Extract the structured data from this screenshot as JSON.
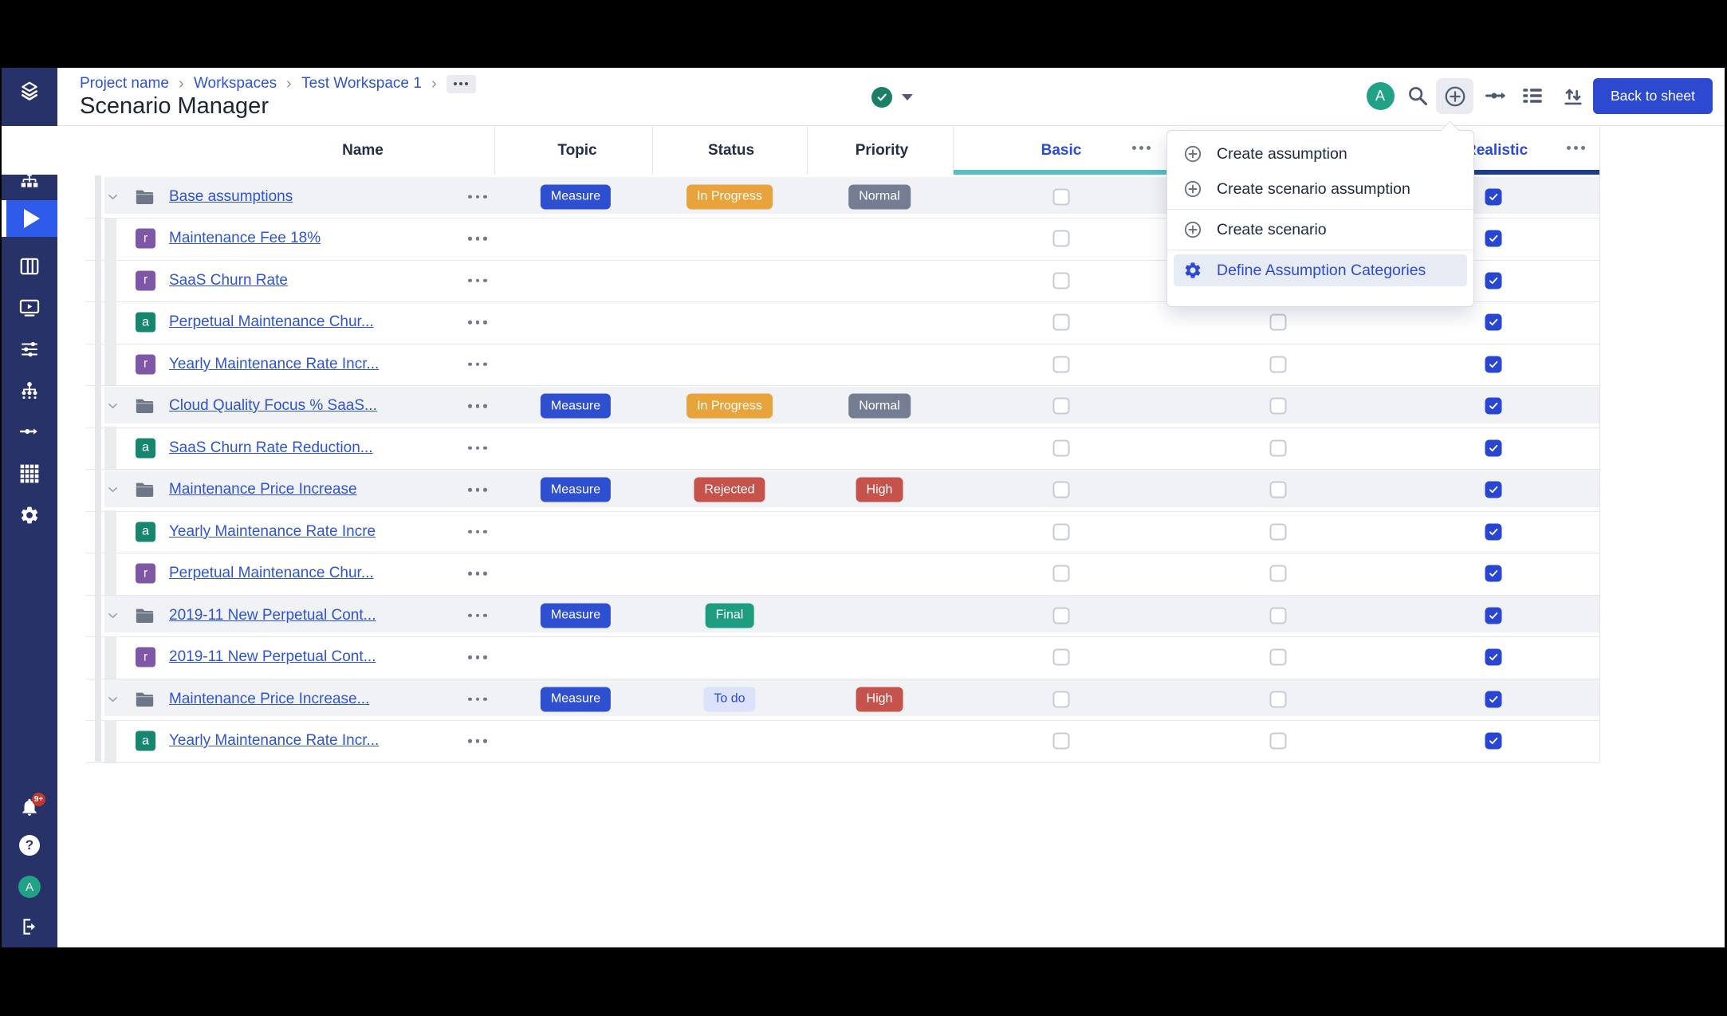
{
  "colors": {
    "accent_blue": "#2b4bd7",
    "link_blue": "#2e54d3",
    "sidebar_bg": "#273268",
    "sidebar_active": "#2e5be9",
    "teal_underline": "#54bfc5",
    "navy_underline": "#1e3d92",
    "badge_blue": "#2e4fd0",
    "badge_orange": "#e8a33b",
    "badge_gray": "#747d92",
    "badge_red": "#c5534c",
    "badge_green": "#1e9c80",
    "badge_light_bg": "#dbe2f9",
    "checkbox_blue": "#2946d2",
    "back_button_bg": "#2d49cf",
    "status_green": "#1b7f68",
    "avatar_green": "#21a185",
    "letter_r_bg": "#7e57a7",
    "letter_a_bg": "#17866f"
  },
  "sidebar": {
    "top_icons": [
      "layers-logo",
      "archive",
      "sitemap",
      "play",
      "columns",
      "screen-play",
      "sliders",
      "org-chart",
      "flow-arrow",
      "grid",
      "gear"
    ],
    "active_icon": "play",
    "bottom_icons": [
      "bell",
      "help",
      "avatar",
      "logout"
    ],
    "notifications_badge": "9+",
    "avatar_initial": "A"
  },
  "breadcrumb": {
    "items": [
      "Project name",
      "Workspaces",
      "Test Workspace 1"
    ],
    "more": "..."
  },
  "page_title": "Scenario Manager",
  "topbar": {
    "status_icon": "check",
    "avatar_initial": "A",
    "back_button": "Back to sheet"
  },
  "menu": {
    "items": [
      {
        "icon": "plus-circle",
        "label": "Create assumption",
        "highlighted": false,
        "divider_after": false
      },
      {
        "icon": "plus-circle",
        "label": "Create scenario assumption",
        "highlighted": false,
        "divider_after": true
      },
      {
        "icon": "plus-circle",
        "label": "Create scenario",
        "highlighted": false,
        "divider_after": true
      },
      {
        "icon": "gear",
        "label": "Define Assumption Categories",
        "highlighted": true,
        "divider_after": false
      }
    ]
  },
  "table": {
    "headers": [
      "Name",
      "Topic",
      "Status",
      "Priority",
      "Basic",
      "Realistic"
    ],
    "basic_header_color": "blue",
    "realistic_header_color": "blue",
    "scenario_columns": [
      {
        "name": "Basic",
        "checked": false
      },
      {
        "name": "hidden",
        "checked": false
      },
      {
        "name": "Realistic",
        "checked": true
      }
    ],
    "rows": [
      {
        "type": "group",
        "icon": "folder",
        "name": "Base assumptions",
        "topic": {
          "label": "Measure",
          "variant": "blue"
        },
        "status": {
          "label": "In Progress",
          "variant": "orange"
        },
        "priority": {
          "label": "Normal",
          "variant": "gray"
        }
      },
      {
        "type": "child",
        "icon": "r",
        "name": "Maintenance Fee 18%"
      },
      {
        "type": "child",
        "icon": "r",
        "name": "SaaS Churn Rate"
      },
      {
        "type": "child",
        "icon": "a",
        "name": "Perpetual Maintenance Chur..."
      },
      {
        "type": "child",
        "icon": "r",
        "name": "Yearly Maintenance Rate Incr..."
      },
      {
        "type": "group",
        "icon": "folder",
        "name": "Cloud Quality Focus % SaaS...",
        "topic": {
          "label": "Measure",
          "variant": "blue"
        },
        "status": {
          "label": "In Progress",
          "variant": "orange"
        },
        "priority": {
          "label": "Normal",
          "variant": "gray"
        }
      },
      {
        "type": "child",
        "icon": "a",
        "name": "SaaS Churn Rate Reduction..."
      },
      {
        "type": "group",
        "icon": "folder",
        "name": "Maintenance Price Increase",
        "topic": {
          "label": "Measure",
          "variant": "blue"
        },
        "status": {
          "label": "Rejected",
          "variant": "red"
        },
        "priority": {
          "label": "High",
          "variant": "red"
        }
      },
      {
        "type": "child",
        "icon": "a",
        "name": "Yearly Maintenance Rate Incre"
      },
      {
        "type": "child",
        "icon": "r",
        "name": "Perpetual Maintenance Chur..."
      },
      {
        "type": "group",
        "icon": "folder",
        "name": "2019-11 New Perpetual Cont...",
        "topic": {
          "label": "Measure",
          "variant": "blue"
        },
        "status": {
          "label": "Final",
          "variant": "green"
        }
      },
      {
        "type": "child",
        "icon": "r",
        "name": "2019-11 New Perpetual Cont..."
      },
      {
        "type": "group",
        "icon": "folder",
        "name": "Maintenance Price Increase...",
        "topic": {
          "label": "Measure",
          "variant": "blue"
        },
        "status": {
          "label": "To do",
          "variant": "light"
        },
        "priority": {
          "label": "High",
          "variant": "red"
        }
      },
      {
        "type": "child",
        "icon": "a",
        "name": "Yearly Maintenance Rate Incr..."
      }
    ]
  }
}
